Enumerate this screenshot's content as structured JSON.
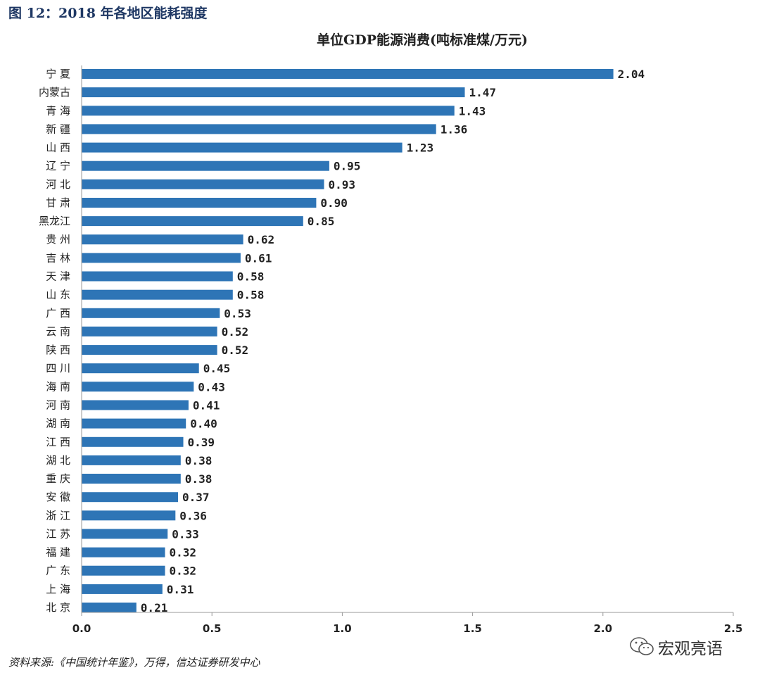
{
  "figure_title": "图 12：2018 年各地区能耗强度",
  "source_note": "资料来源:《中国统计年鉴》，万得，信达证券研发中心",
  "watermark": {
    "text": "宏观亮语",
    "icon": "wechat-icon"
  },
  "colors": {
    "bar": "#2e75b6",
    "title": "#1f3864"
  },
  "chart_data": {
    "type": "bar",
    "orientation": "horizontal",
    "title": "单位GDP能源消费(吨标准煤/万元)",
    "xlim": [
      0,
      2.5
    ],
    "xticks": [
      "0.0",
      "0.5",
      "1.0",
      "1.5",
      "2.0",
      "2.5"
    ],
    "grid": false,
    "categories": [
      "宁 夏",
      "内蒙古",
      "青 海",
      "新 疆",
      "山 西",
      "辽 宁",
      "河 北",
      "甘 肃",
      "黑龙江",
      "贵 州",
      "吉 林",
      "天 津",
      "山 东",
      "广 西",
      "云 南",
      "陕 西",
      "四 川",
      "海 南",
      "河 南",
      "湖 南",
      "江 西",
      "湖 北",
      "重 庆",
      "安 徽",
      "浙 江",
      "江 苏",
      "福 建",
      "广 东",
      "上 海",
      "北 京"
    ],
    "values": [
      2.04,
      1.47,
      1.43,
      1.36,
      1.23,
      0.95,
      0.93,
      0.9,
      0.85,
      0.62,
      0.61,
      0.58,
      0.58,
      0.53,
      0.52,
      0.52,
      0.45,
      0.43,
      0.41,
      0.4,
      0.39,
      0.38,
      0.38,
      0.37,
      0.36,
      0.33,
      0.32,
      0.32,
      0.31,
      0.21
    ],
    "value_labels": [
      "2.04",
      "1.47",
      "1.43",
      "1.36",
      "1.23",
      "0.95",
      "0.93",
      "0.90",
      "0.85",
      "0.62",
      "0.61",
      "0.58",
      "0.58",
      "0.53",
      "0.52",
      "0.52",
      "0.45",
      "0.43",
      "0.41",
      "0.40",
      "0.39",
      "0.38",
      "0.38",
      "0.37",
      "0.36",
      "0.33",
      "0.32",
      "0.32",
      "0.31",
      "0.21"
    ]
  }
}
